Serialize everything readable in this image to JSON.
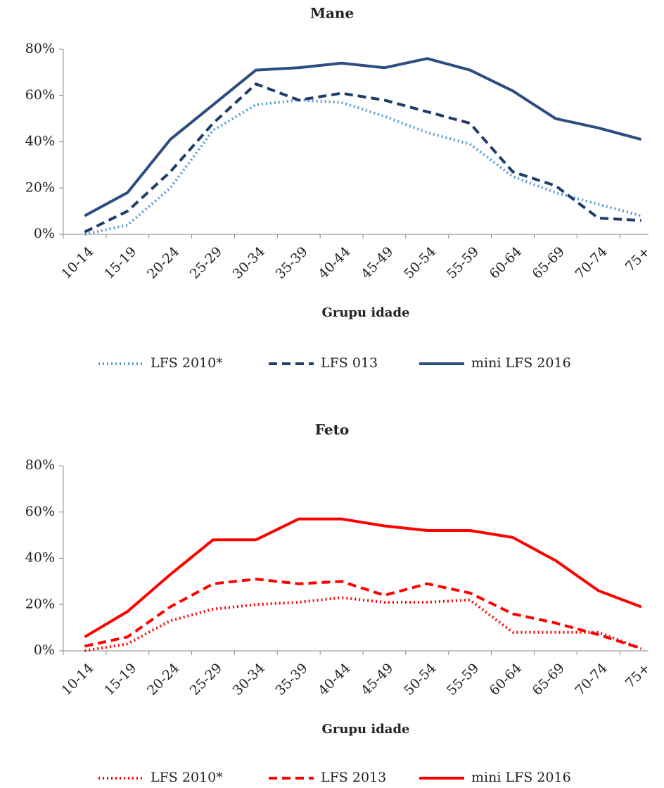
{
  "chart_data": [
    {
      "type": "line",
      "title": "Mane",
      "x_label": "Grupu idade",
      "categories": [
        "10-14",
        "15-19",
        "20-24",
        "25-29",
        "30-34",
        "35-39",
        "40-44",
        "45-49",
        "50-54",
        "55-59",
        "60-64",
        "65-69",
        "70-74",
        "75+"
      ],
      "ylim": [
        0,
        80
      ],
      "yticks": [
        {
          "value": 0,
          "label": "0%"
        },
        {
          "value": 20,
          "label": "20%"
        },
        {
          "value": 40,
          "label": "40%"
        },
        {
          "value": 60,
          "label": "60%"
        },
        {
          "value": 80,
          "label": "80%"
        }
      ],
      "grid": false,
      "series": [
        {
          "name": "LFS 2010*",
          "color": "#5b9bd5",
          "dash": "dotted",
          "values": [
            0,
            4,
            20,
            45,
            56,
            58,
            57,
            51,
            44,
            39,
            25,
            18,
            13,
            8
          ]
        },
        {
          "name": "LFS 013",
          "color": "#1f3d6b",
          "dash": "dashed",
          "values": [
            1,
            10,
            27,
            48,
            65,
            58,
            61,
            58,
            53,
            48,
            27,
            21,
            7,
            6
          ]
        },
        {
          "name": "mini LFS 2016",
          "color": "#2c4c82",
          "dash": "solid",
          "values": [
            8,
            18,
            41,
            56,
            71,
            72,
            74,
            72,
            76,
            71,
            62,
            50,
            46,
            41
          ]
        }
      ]
    },
    {
      "type": "line",
      "title": "Feto",
      "x_label": "Grupu idade",
      "categories": [
        "10-14",
        "15-19",
        "20-24",
        "25-29",
        "30-34",
        "35-39",
        "40-44",
        "45-49",
        "50-54",
        "55-59",
        "60-64",
        "65-69",
        "70-74",
        "75+"
      ],
      "ylim": [
        0,
        80
      ],
      "yticks": [
        {
          "value": 0,
          "label": "0%"
        },
        {
          "value": 20,
          "label": "20%"
        },
        {
          "value": 40,
          "label": "40%"
        },
        {
          "value": 60,
          "label": "60%"
        },
        {
          "value": 80,
          "label": "80%"
        }
      ],
      "grid": false,
      "series": [
        {
          "name": "LFS 2010*",
          "color": "#ff0000",
          "dash": "dotted",
          "values": [
            0,
            3,
            13,
            18,
            20,
            21,
            23,
            21,
            21,
            22,
            8,
            8,
            8,
            1
          ]
        },
        {
          "name": "LFS 2013",
          "color": "#ff0000",
          "dash": "dashed",
          "values": [
            2,
            6,
            19,
            29,
            31,
            29,
            30,
            24,
            29,
            25,
            16,
            12,
            7,
            1
          ]
        },
        {
          "name": "mini LFS 2016",
          "color": "#ff0000",
          "dash": "solid",
          "values": [
            6,
            17,
            33,
            48,
            48,
            57,
            57,
            54,
            52,
            52,
            49,
            39,
            26,
            19
          ]
        }
      ]
    }
  ]
}
